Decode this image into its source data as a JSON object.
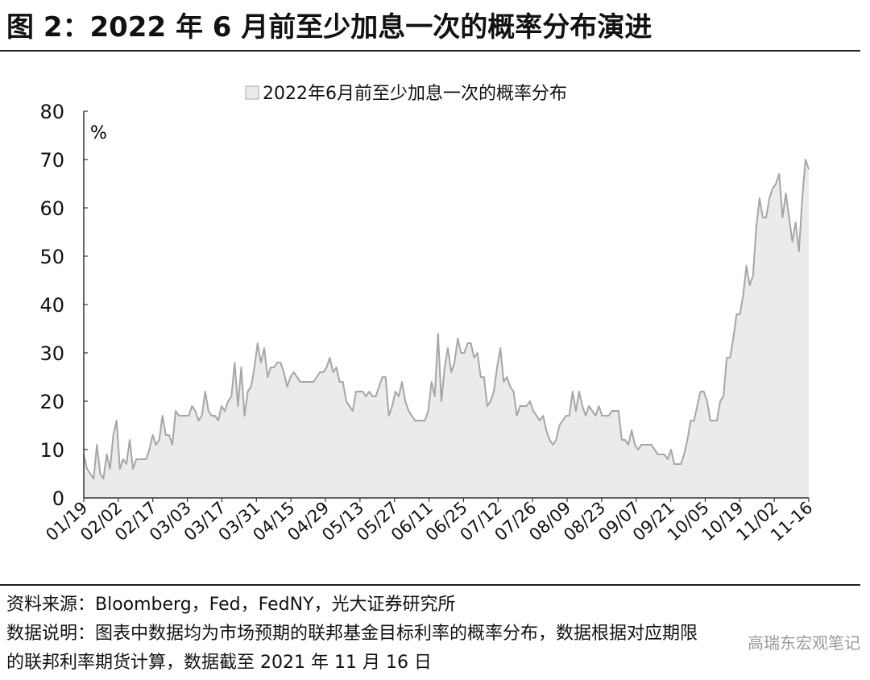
{
  "title": "图 2：2022 年 6 月前至少加息一次的概率分布演进",
  "notes": {
    "source": "资料来源：Bloomberg，Fed，FedNY，光大证券研究所",
    "line1": "数据说明：图表中数据均为市场预期的联邦基金目标利率的概率分布，数据根据对应期限",
    "line2": "的联邦利率期货计算，数据截至 2021 年 11 月 16 日"
  },
  "watermark": "高瑞东宏观笔记",
  "colors": {
    "fill": "#ebebeb",
    "line": "#a6a6a6",
    "axis": "#333333"
  },
  "chart_data": {
    "type": "area",
    "legend": {
      "label": "2022年6月前至少加息一次的概率分布",
      "position": "top-center"
    },
    "unit_label": "%",
    "ylim": [
      0,
      80
    ],
    "yticks": [
      0,
      10,
      20,
      30,
      40,
      50,
      60,
      70,
      80
    ],
    "grid": false,
    "xtick_labels": [
      "01/19",
      "02/02",
      "02/17",
      "03/03",
      "03/17",
      "03/31",
      "04/15",
      "04/29",
      "05/13",
      "05/27",
      "06/11",
      "06/25",
      "07/12",
      "07/26",
      "08/09",
      "08/23",
      "09/07",
      "09/21",
      "10/05",
      "10/19",
      "11/02",
      "11-16"
    ],
    "series": [
      {
        "values": [
          9,
          6,
          5,
          4,
          11,
          5,
          4,
          9,
          6,
          13,
          16,
          6,
          8,
          7,
          12,
          6,
          8,
          8,
          8,
          8,
          10,
          13,
          11,
          12,
          17,
          13,
          13,
          11,
          18,
          17,
          17,
          17,
          17,
          19,
          18,
          16,
          17,
          22,
          18,
          17,
          17,
          16,
          19,
          18,
          20,
          21,
          28,
          19,
          27,
          17,
          22,
          23,
          27,
          32,
          28,
          31,
          25,
          27,
          27,
          28,
          28,
          26,
          23,
          25,
          26,
          25,
          24,
          24,
          24,
          24,
          24,
          25,
          26,
          26,
          27,
          29,
          26,
          27,
          24,
          24,
          20,
          19,
          18,
          22,
          22,
          22,
          21,
          22,
          21,
          21,
          23,
          25,
          25,
          17,
          19,
          22,
          21,
          24,
          20,
          18,
          17,
          16,
          16,
          16,
          16,
          18,
          24,
          21,
          34,
          20,
          27,
          31,
          26,
          28,
          33,
          30,
          30,
          32,
          32,
          29,
          30,
          25,
          25,
          19,
          20,
          22,
          27,
          31,
          24,
          25,
          23,
          22,
          17,
          19,
          19,
          19,
          20,
          18,
          17,
          16,
          17,
          14,
          12,
          11,
          12,
          15,
          16,
          17,
          17,
          22,
          18,
          22,
          19,
          17,
          19,
          18,
          17,
          19,
          17,
          17,
          17,
          18,
          18,
          18,
          12,
          12,
          11,
          14,
          11,
          10,
          11,
          11,
          11,
          11,
          10,
          9,
          9,
          9,
          8,
          10,
          7,
          7,
          7,
          9,
          12,
          16,
          16,
          19,
          22,
          22,
          20,
          16,
          16,
          16,
          20,
          21,
          29,
          29,
          33,
          38,
          38,
          42,
          48,
          44,
          46,
          56,
          62,
          58,
          58,
          62,
          64,
          65,
          67,
          58,
          63,
          58,
          53,
          57,
          51,
          62,
          70,
          68
        ]
      }
    ]
  }
}
